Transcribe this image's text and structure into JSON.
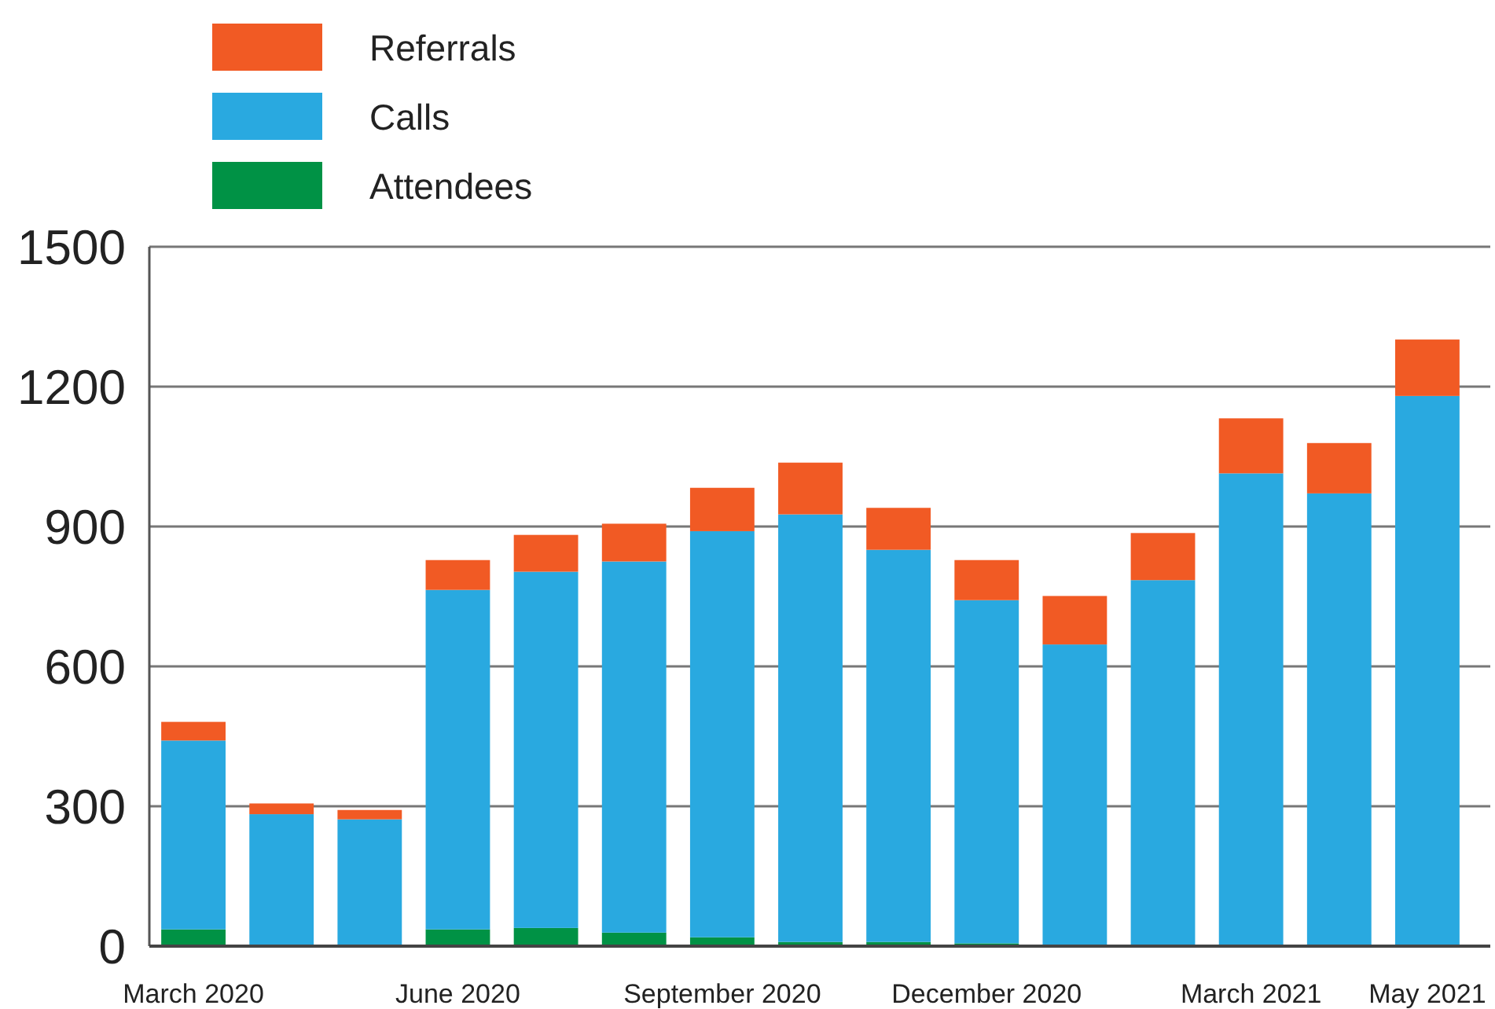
{
  "chart_data": {
    "type": "bar",
    "stacked": true,
    "categories": [
      "March 2020",
      null,
      null,
      "June 2020",
      null,
      null,
      "September 2020",
      null,
      null,
      "December 2020",
      null,
      null,
      "March 2021",
      null,
      "May 2021"
    ],
    "series": [
      {
        "name": "Attendees",
        "color": "#009245",
        "values": [
          36,
          0,
          0,
          36,
          39,
          29,
          19,
          9,
          9,
          6,
          0,
          0,
          0,
          0,
          0
        ]
      },
      {
        "name": "Calls",
        "color": "#29a9e0",
        "values": [
          405,
          283,
          272,
          728,
          764,
          796,
          871,
          917,
          841,
          736,
          647,
          785,
          1014,
          971,
          1180
        ]
      },
      {
        "name": "Referrals",
        "color": "#f15a24",
        "values": [
          40,
          23,
          20,
          64,
          79,
          81,
          93,
          111,
          90,
          86,
          104,
          101,
          118,
          108,
          121
        ]
      }
    ],
    "ylim": [
      0,
      1500
    ],
    "yticks": [
      0,
      300,
      600,
      900,
      1200,
      1500
    ],
    "grid": "y",
    "legend": "top left"
  }
}
